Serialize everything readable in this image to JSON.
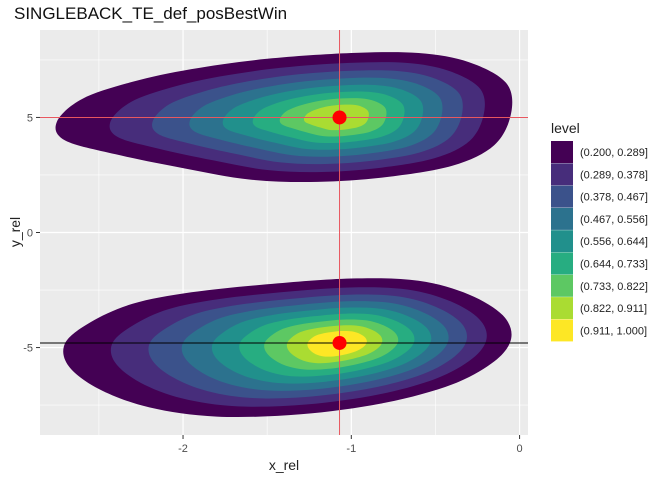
{
  "chart_data": {
    "type": "contour",
    "title": "SINGLEBACK_TE_def_posBestWin",
    "xlabel": "x_rel",
    "ylabel": "y_rel",
    "xlim": [
      -2.85,
      0.05
    ],
    "ylim": [
      -8.8,
      8.8
    ],
    "x_ticks": [
      {
        "value": -2,
        "label": "-2"
      },
      {
        "value": -1,
        "label": "-1"
      },
      {
        "value": 0,
        "label": "0"
      }
    ],
    "y_ticks": [
      {
        "value": -5,
        "label": "-5"
      },
      {
        "value": 0,
        "label": "0"
      },
      {
        "value": 5,
        "label": "5"
      }
    ],
    "grid": true,
    "legend_title": "level",
    "legend_position": "right",
    "levels": [
      {
        "label": "(0.200, 0.289]",
        "color": "#440154"
      },
      {
        "label": "(0.289, 0.378]",
        "color": "#472D7B"
      },
      {
        "label": "(0.378, 0.467]",
        "color": "#3B528B"
      },
      {
        "label": "(0.467, 0.556]",
        "color": "#2C728E"
      },
      {
        "label": "(0.556, 0.644]",
        "color": "#21908C"
      },
      {
        "label": "(0.644, 0.733]",
        "color": "#27AD81"
      },
      {
        "label": "(0.733, 0.822]",
        "color": "#5DC863"
      },
      {
        "label": "(0.822, 0.911]",
        "color": "#AADC32"
      },
      {
        "label": "(0.911, 1.000]",
        "color": "#FDE725"
      }
    ],
    "clusters": [
      {
        "center": [
          -1.07,
          5.0
        ],
        "x_extent": [
          -2.75,
          -0.05
        ],
        "y_extent": [
          2.1,
          7.8
        ],
        "peak_level": 8
      },
      {
        "center": [
          -1.07,
          -4.8
        ],
        "x_extent": [
          -2.7,
          -0.05
        ],
        "y_extent": [
          -8.0,
          -2.0
        ],
        "peak_level": 9
      }
    ],
    "points": [
      {
        "x": -1.07,
        "y": 5.0,
        "color": "#FF0000"
      },
      {
        "x": -1.07,
        "y": -4.8,
        "color": "#FF0000"
      }
    ],
    "reference_lines": [
      {
        "orientation": "vertical",
        "value": -1.07,
        "color": "#E8575F"
      },
      {
        "orientation": "horizontal",
        "value": 5.0,
        "color": "#E8575F"
      },
      {
        "orientation": "horizontal",
        "value": -4.8,
        "color": "#000000"
      }
    ],
    "panel_background": "#EBEBEB",
    "grid_color": "#FFFFFF"
  }
}
